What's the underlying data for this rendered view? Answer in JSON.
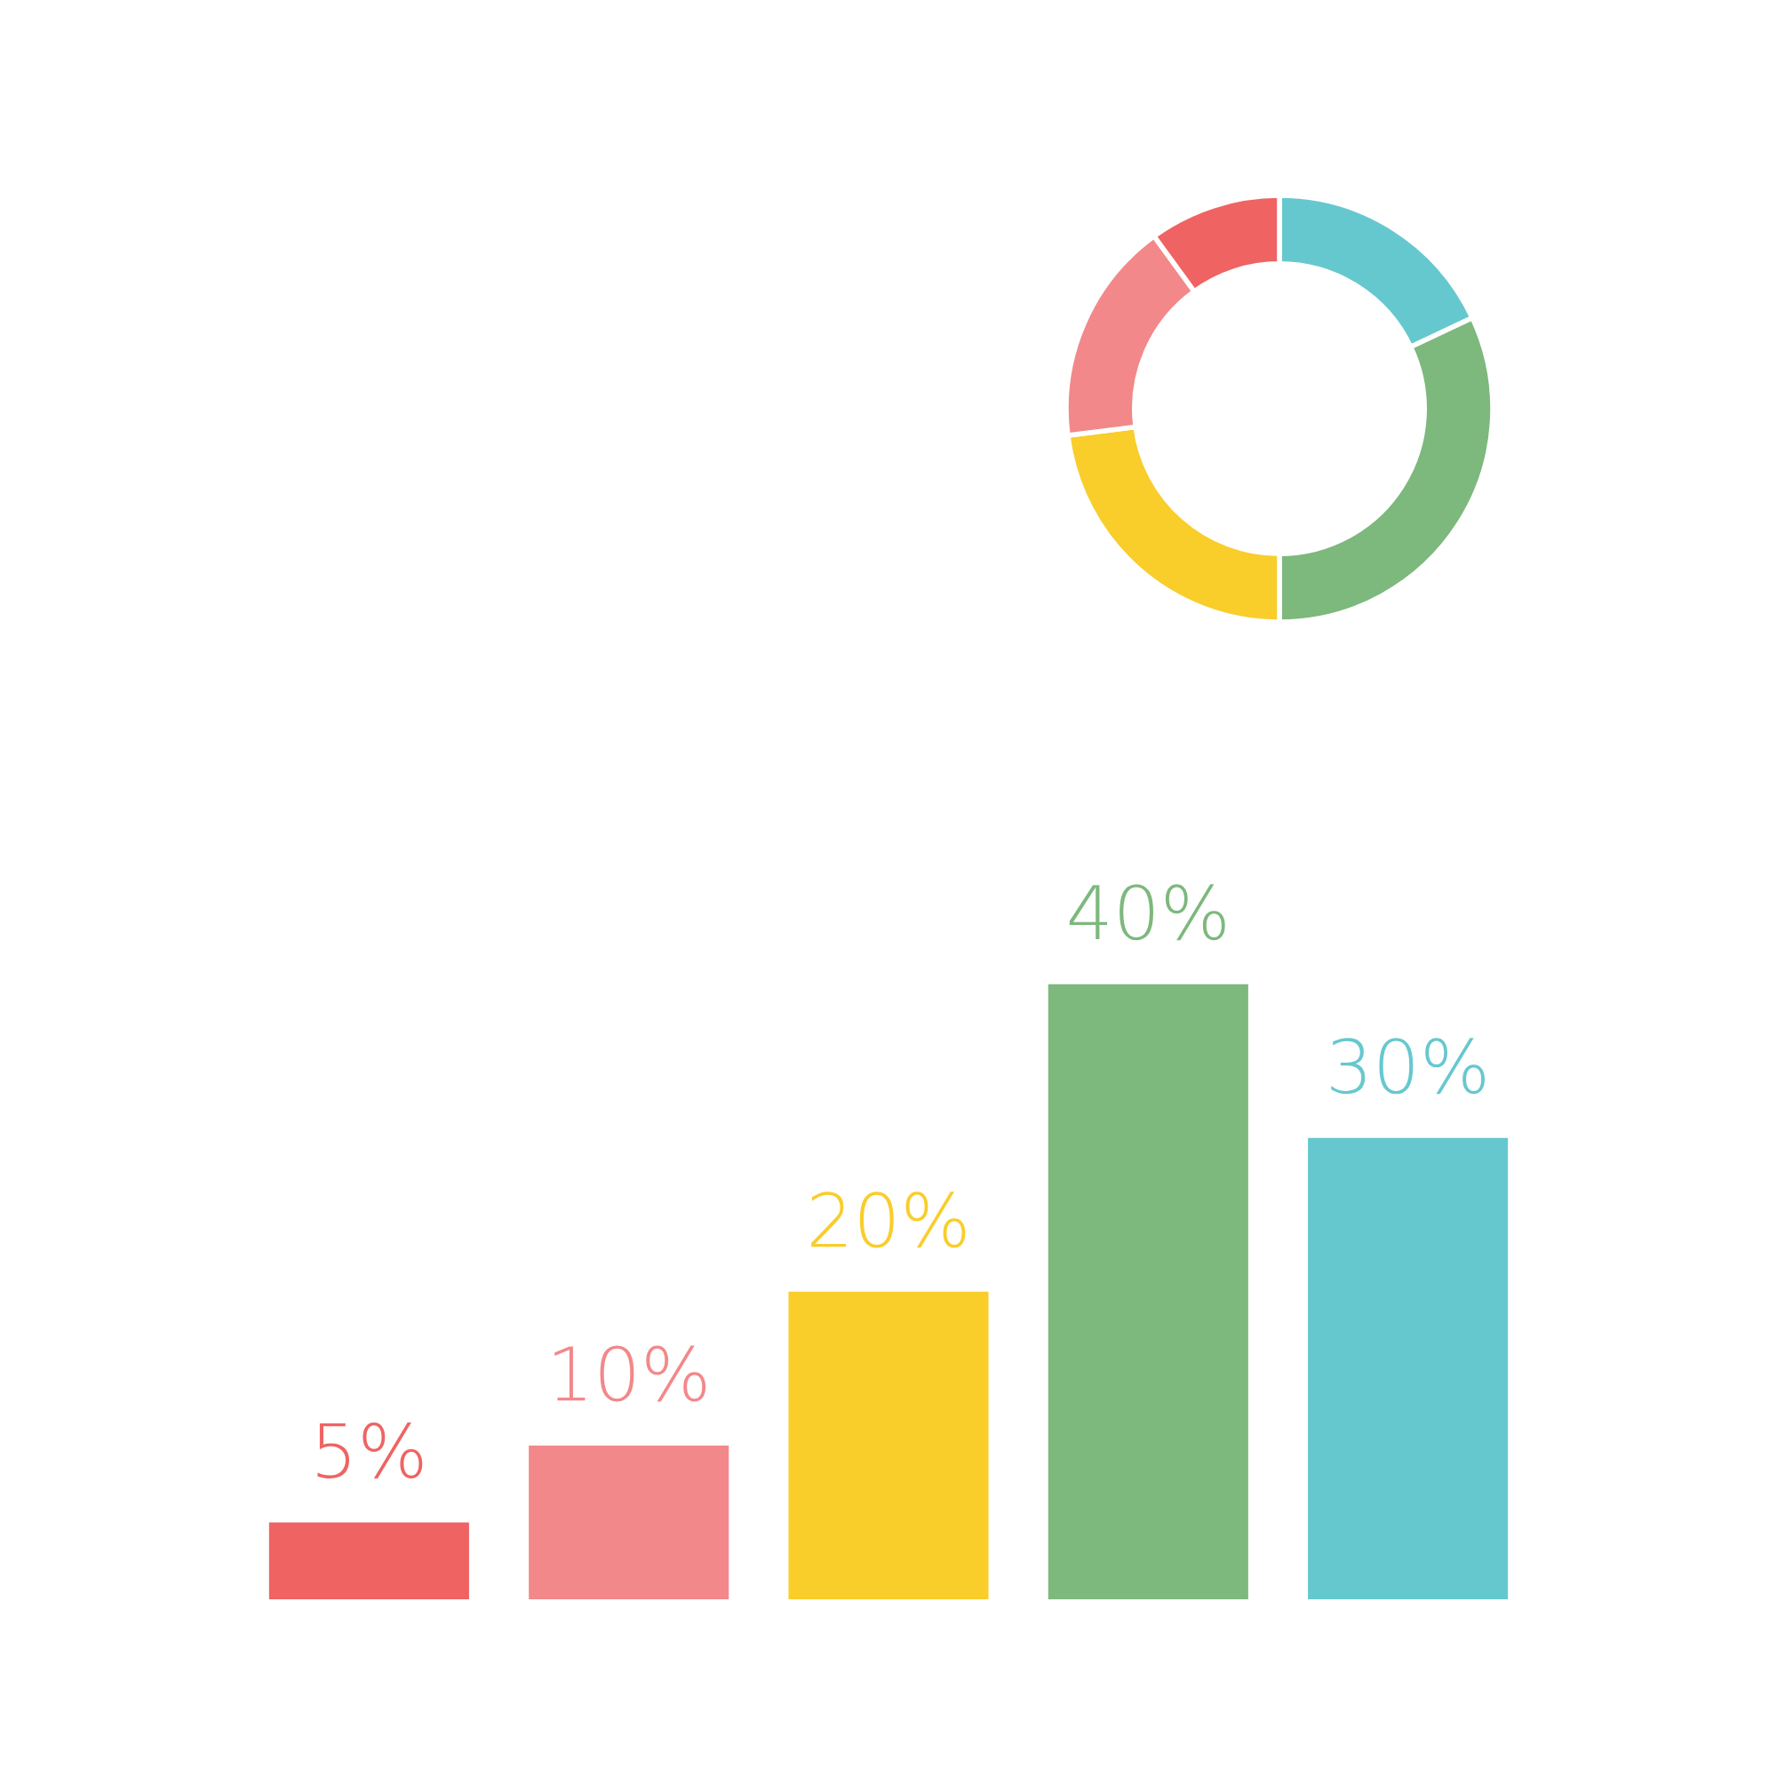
{
  "chart_data": [
    {
      "type": "donut",
      "categories": [
        null,
        null,
        null,
        null,
        null
      ],
      "values": [
        18,
        32,
        23,
        17,
        10
      ],
      "colors": [
        "#66c8cf",
        "#7db87d",
        "#f9cd2a",
        "#f2888a",
        "#ef6363"
      ]
    },
    {
      "type": "bar",
      "categories": [
        null,
        null,
        null,
        null,
        null
      ],
      "values": [
        5,
        10,
        20,
        40,
        30
      ],
      "colors": [
        "#ef6363",
        "#f2888a",
        "#f9cd2a",
        "#7db87d",
        "#66c8cf"
      ],
      "data_labels": true,
      "value_labels": [
        "5%",
        "10%",
        "20%",
        "40%",
        "30%"
      ],
      "tick_labels": false
    }
  ]
}
